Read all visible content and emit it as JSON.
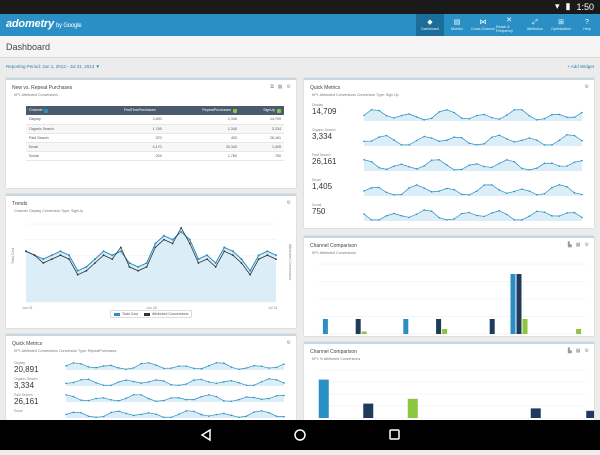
{
  "status": {
    "time": "1:50"
  },
  "app": {
    "logo": "adometry",
    "logo_sub": "by Google"
  },
  "nav": [
    {
      "label": "Dashboard",
      "icon": "◆"
    },
    {
      "label": "Monitor",
      "icon": "▤"
    },
    {
      "label": "Cross-Channel",
      "icon": "⋈"
    },
    {
      "label": "Reach & Frequency",
      "icon": "✕"
    },
    {
      "label": "Attribution",
      "icon": "⤢"
    },
    {
      "label": "Optimization",
      "icon": "⊞"
    },
    {
      "label": "Help",
      "icon": "?"
    }
  ],
  "page": {
    "title": "Dashboard",
    "period": "Reporting Period: Jun 1, 2013 - Jul 31, 2013 ▼",
    "add_widget": "+ Add Widget"
  },
  "card_new_repeat": {
    "title": "New vs. Repeat Purchases",
    "subtitle": "KPI: Attributed Conversions",
    "columns": [
      "Channel",
      "FirstTimePurchases",
      "RepeatPurchases",
      "SignUp"
    ],
    "rows": [
      [
        "Display",
        "3,400",
        "2,345",
        "14,709"
      ],
      [
        "Organic Search",
        "1,765",
        "1,345",
        "3,334"
      ],
      [
        "Paid Search",
        "370",
        "453",
        "26,161"
      ],
      [
        "Email",
        "4,170",
        "30,340",
        "1,405"
      ],
      [
        "Social",
        "204",
        "1,760",
        "750"
      ]
    ]
  },
  "card_trends": {
    "title": "Trends",
    "subtitle": "Channel: Display    Conversion Type: SignUp",
    "y_left_label": "Total Cost",
    "y_right_label": "Attributed Conversions",
    "x_start": "Jun 01",
    "x_mid": "Jun 28",
    "x_end": "Jul 31",
    "legend": [
      "Total Cost",
      "Attributed Conversions"
    ],
    "colors": {
      "cost": "#2a8fc4",
      "conv": "#333333"
    }
  },
  "card_quick_metrics_1": {
    "title": "Quick Metrics",
    "subtitle": "KPI: Attributed Conversions    Conversion Type: Sign Up",
    "items": [
      {
        "label": "Display",
        "value": "14,709"
      },
      {
        "label": "Organic Search",
        "value": "3,334"
      },
      {
        "label": "Paid Search",
        "value": "26,161"
      },
      {
        "label": "Email",
        "value": "1,405"
      },
      {
        "label": "Social",
        "value": "750"
      }
    ]
  },
  "card_quick_metrics_2": {
    "title": "Quick Metrics",
    "subtitle": "KPI: Attributed Conversions    Conversion Type: RepeatPurchases",
    "items": [
      {
        "label": "Display",
        "value": "20,891"
      },
      {
        "label": "Organic Search",
        "value": "3,334"
      },
      {
        "label": "Paid Search",
        "value": "26,161"
      },
      {
        "label": "Email",
        "value": ""
      }
    ]
  },
  "card_channel_comparison_1": {
    "title": "Channel Comparison",
    "subtitle": "KPI: Attributed Conversions"
  },
  "card_channel_comparison_2": {
    "title": "Channel Comparison",
    "subtitle": "KPI: % Attributed Conversions"
  },
  "chart_data": [
    {
      "type": "line",
      "title": "Trends",
      "series": [
        {
          "name": "Total Cost",
          "values": [
            13,
            12,
            11,
            12,
            13,
            12,
            8,
            9,
            11,
            13,
            12,
            13,
            10,
            9,
            10,
            15,
            17,
            16,
            18,
            16,
            11,
            12,
            10,
            14,
            13,
            11,
            8,
            12,
            13,
            12
          ]
        },
        {
          "name": "Attributed Conversions",
          "values": [
            13,
            12,
            10,
            11,
            12,
            11,
            7,
            8,
            10,
            12,
            11,
            14,
            9,
            8,
            9,
            14,
            16,
            15,
            19,
            15,
            10,
            11,
            9,
            13,
            12,
            10,
            7,
            11,
            12,
            11
          ]
        }
      ]
    },
    {
      "type": "bar",
      "title": "Channel Comparison",
      "series": [
        {
          "name": "blue",
          "values": [
            3,
            0,
            0,
            3,
            0,
            0,
            0,
            12,
            0,
            0
          ]
        },
        {
          "name": "navy",
          "values": [
            0,
            3,
            0,
            0,
            3,
            0,
            3,
            12,
            0,
            0
          ]
        },
        {
          "name": "green",
          "values": [
            0,
            0.5,
            0,
            0,
            1,
            0,
            0,
            3,
            0,
            1
          ]
        }
      ]
    },
    {
      "type": "bar",
      "title": "Channel Comparison",
      "series": [
        {
          "name": "blue",
          "values": [
            8,
            0,
            0,
            0,
            0,
            0,
            0,
            0
          ]
        },
        {
          "name": "navy",
          "values": [
            0,
            3,
            0,
            0,
            0,
            0,
            2,
            0
          ]
        },
        {
          "name": "green",
          "values": [
            0,
            0,
            4,
            0,
            0,
            0,
            0,
            0
          ]
        },
        {
          "name": "navy2",
          "values": [
            0,
            0,
            0,
            0,
            0,
            0,
            0,
            1.5
          ]
        }
      ]
    }
  ]
}
